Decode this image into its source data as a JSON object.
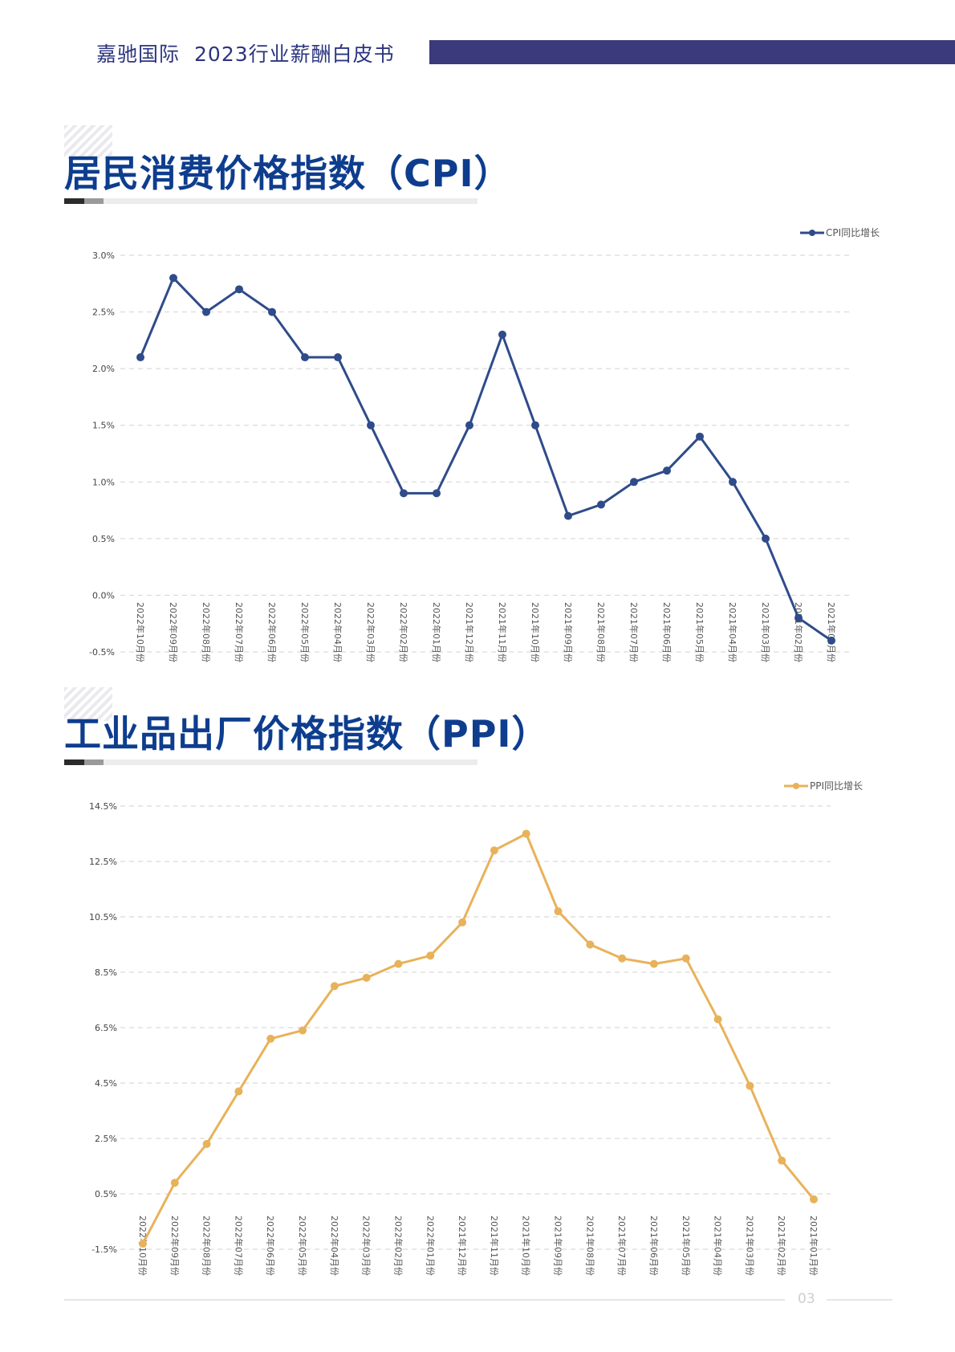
{
  "header": {
    "company": "嘉驰国际",
    "report": "2023行业薪酬白皮书"
  },
  "page_number": "03",
  "colors": {
    "cpi": "#2f4b8a",
    "ppi": "#e8b25a",
    "title": "#0e3d8e",
    "header_bar": "#3a3a7c"
  },
  "sections": [
    {
      "title": "居民消费价格指数（CPI）"
    },
    {
      "title": "工业品出厂价格指数（PPI）"
    }
  ],
  "chart_data": [
    {
      "type": "line",
      "title": "",
      "xlabel": "",
      "ylabel": "",
      "categories": [
        "2022年10月份",
        "2022年09月份",
        "2022年08月份",
        "2022年07月份",
        "2022年06月份",
        "2022年05月份",
        "2022年04月份",
        "2022年03月份",
        "2022年02月份",
        "2022年01月份",
        "2021年12月份",
        "2021年11月份",
        "2021年10月份",
        "2021年09月份",
        "2021年08月份",
        "2021年07月份",
        "2021年06月份",
        "2021年05月份",
        "2021年04月份",
        "2021年03月份",
        "2021年02月份",
        "2021年01月份"
      ],
      "series": [
        {
          "name": "CPI同比增长",
          "color": "#2f4b8a",
          "values": [
            2.1,
            2.8,
            2.5,
            2.7,
            2.5,
            2.1,
            2.1,
            1.5,
            0.9,
            0.9,
            1.5,
            2.3,
            1.5,
            0.7,
            0.8,
            1.0,
            1.1,
            1.4,
            1.0,
            0.5,
            -0.2,
            -0.4
          ]
        }
      ],
      "yticks": [
        "3.0%",
        "2.5%",
        "2.0%",
        "1.5%",
        "1.0%",
        "0.5%",
        "0.0%",
        "-0.5%"
      ],
      "ylim": [
        -0.5,
        3.0
      ],
      "grid": true,
      "legend": "top-right"
    },
    {
      "type": "line",
      "title": "",
      "xlabel": "",
      "ylabel": "",
      "categories": [
        "2022年10月份",
        "2022年09月份",
        "2022年08月份",
        "2022年07月份",
        "2022年06月份",
        "2022年05月份",
        "2022年04月份",
        "2022年03月份",
        "2022年02月份",
        "2022年01月份",
        "2021年12月份",
        "2021年11月份",
        "2021年10月份",
        "2021年09月份",
        "2021年08月份",
        "2021年07月份",
        "2021年06月份",
        "2021年05月份",
        "2021年04月份",
        "2021年03月份",
        "2021年02月份",
        "2021年01月份"
      ],
      "series": [
        {
          "name": "PPI同比增长",
          "color": "#e8b25a",
          "values": [
            -1.3,
            0.9,
            2.3,
            4.2,
            6.1,
            6.4,
            8.0,
            8.3,
            8.8,
            9.1,
            10.3,
            12.9,
            13.5,
            10.7,
            9.5,
            9.0,
            8.8,
            9.0,
            6.8,
            4.4,
            1.7,
            0.3
          ]
        }
      ],
      "yticks": [
        "14.5%",
        "12.5%",
        "10.5%",
        "8.5%",
        "6.5%",
        "4.5%",
        "2.5%",
        "0.5%",
        "-1.5%"
      ],
      "ylim": [
        -1.5,
        14.5
      ],
      "grid": true,
      "legend": "top-right"
    }
  ]
}
